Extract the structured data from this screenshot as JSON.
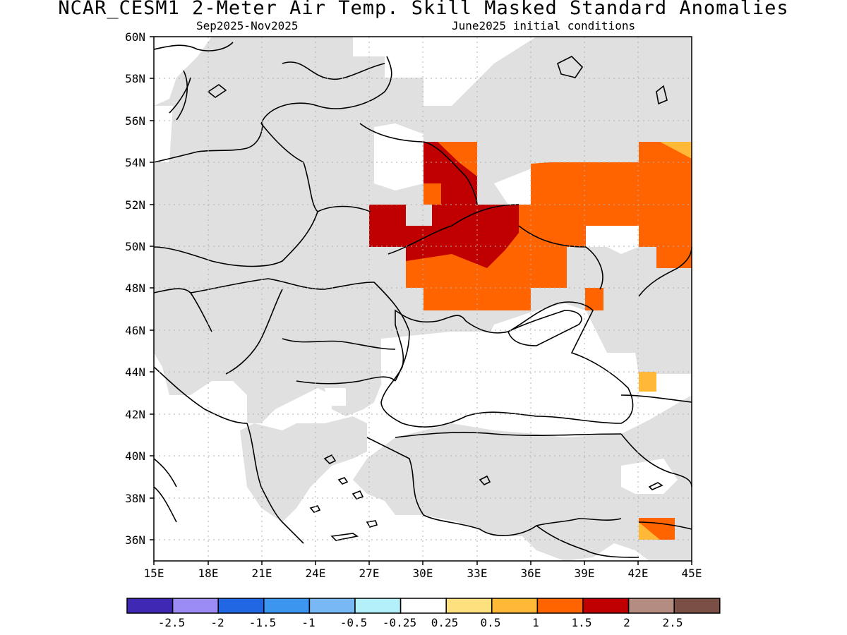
{
  "title": "NCAR_CESM1 2-Meter Air Temp. Skill Masked Standard Anomalies",
  "subtitle_left": "Sep2025-Nov2025",
  "subtitle_right": "June2025 initial conditions",
  "lat_labels": [
    "60N",
    "58N",
    "56N",
    "54N",
    "52N",
    "50N",
    "48N",
    "46N",
    "44N",
    "42N",
    "40N",
    "38N",
    "36N"
  ],
  "lon_labels": [
    "15E",
    "18E",
    "21E",
    "24E",
    "27E",
    "30E",
    "33E",
    "36E",
    "39E",
    "42E",
    "45E"
  ],
  "colorbar": {
    "colors": [
      "#3f28b4",
      "#9b8cf5",
      "#2167e3",
      "#3c96f0",
      "#78b9f5",
      "#b4f0fa",
      "#ffffff",
      "#fee17f",
      "#ffb937",
      "#ff6400",
      "#c00000",
      "#b48c82",
      "#7a5046"
    ],
    "labels": [
      "-2.5",
      "-2",
      "-1.5",
      "-1",
      "-0.5",
      "-0.25",
      "0.25",
      "0.5",
      "1",
      "1.5",
      "2",
      "2.5"
    ]
  },
  "colors": {
    "masked_gray": "#e0e0e0",
    "warm_1": "#ffb937",
    "warm_15": "#ff6400",
    "warm_2": "#c00000"
  }
}
